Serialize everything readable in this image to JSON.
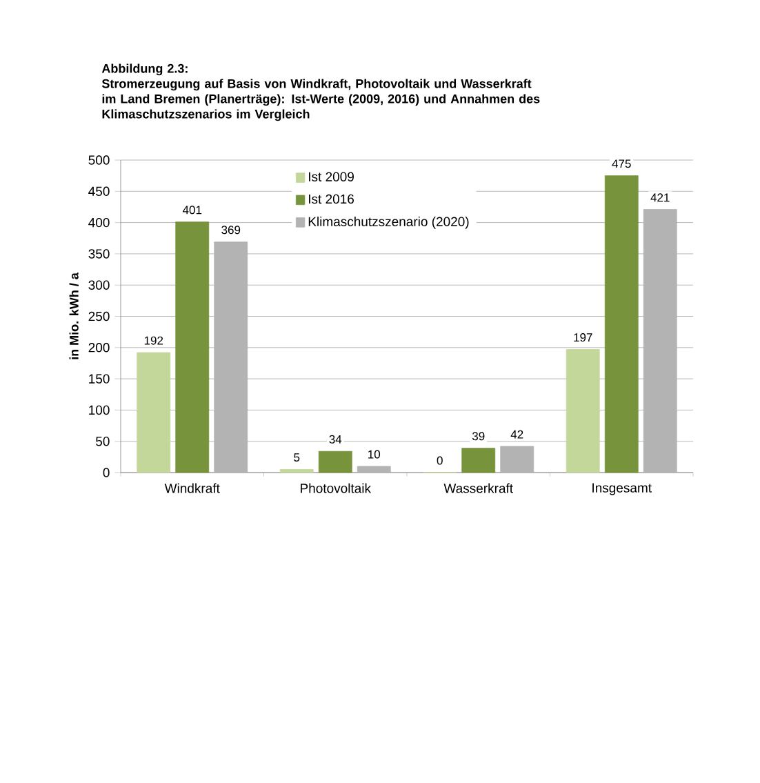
{
  "chart_data": {
    "type": "bar",
    "title": "Abbildung 2.3:",
    "subtitle": "Stromerzeugung auf Basis von Windkraft, Photovoltaik und Wasserkraft im Land Bremen (Planerträge): Ist-Werte (2009, 2016) und Annahmen des Klimaschutzszenarios im Vergleich",
    "ylabel": "in Mio. kWh / a",
    "categories": [
      "Windkraft",
      "Photovoltaik",
      "Wasserkraft",
      "Insgesamt"
    ],
    "series": [
      {
        "name": "Ist 2009",
        "color": "#c4d79b",
        "values": [
          192,
          5,
          0,
          197
        ]
      },
      {
        "name": "Ist 2016",
        "color": "#77933c",
        "values": [
          401,
          34,
          39,
          475
        ]
      },
      {
        "name": "Klimaschutzszenario (2020)",
        "color": "#b3b3b3",
        "values": [
          369,
          10,
          42,
          421
        ]
      }
    ],
    "ylim": [
      0,
      500
    ],
    "yticks": [
      0,
      50,
      100,
      150,
      200,
      250,
      300,
      350,
      400,
      450,
      500
    ],
    "grid": "y",
    "legend": "top",
    "data_labels": true
  }
}
